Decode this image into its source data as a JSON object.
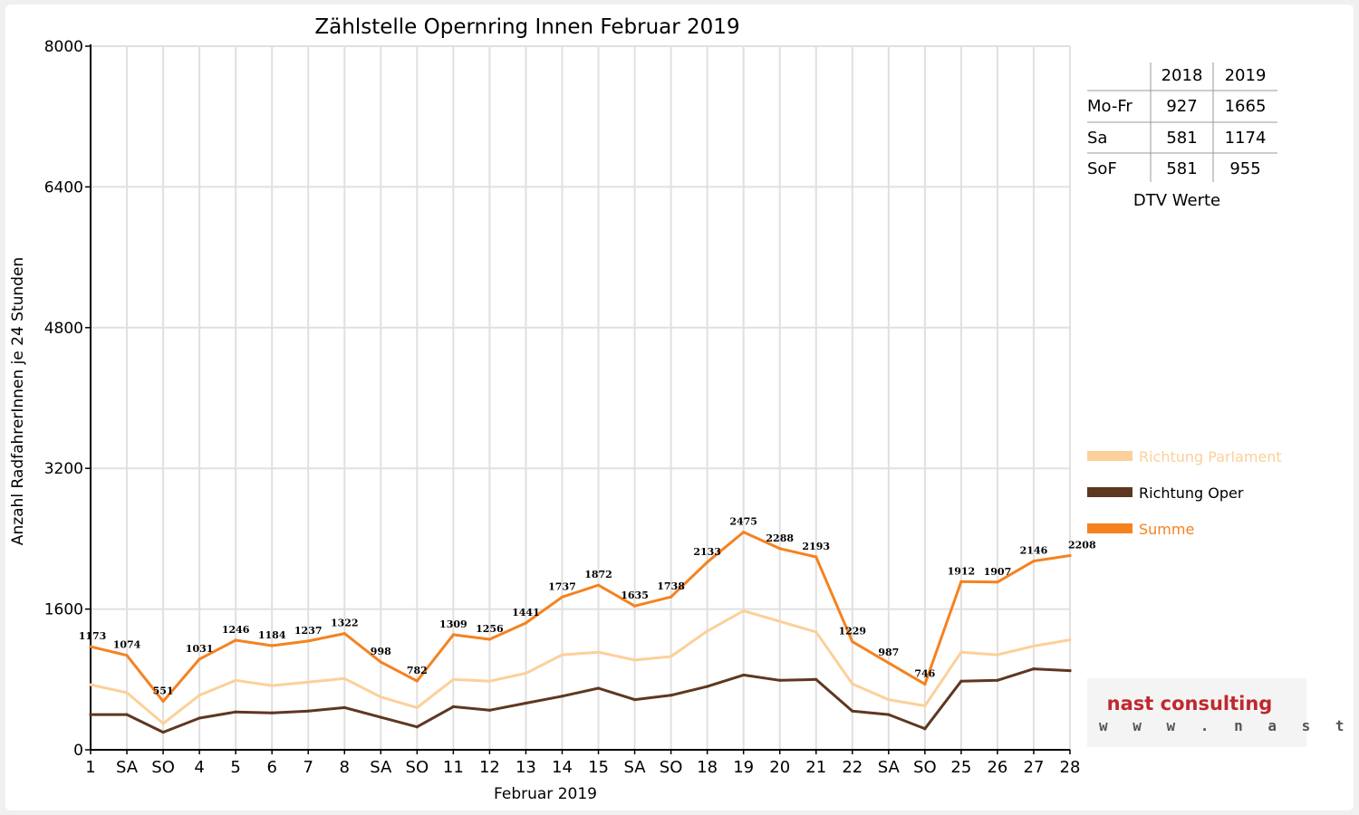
{
  "chart_data": {
    "type": "line",
    "title": "Zählstelle Opernring Innen Februar 2019",
    "xlabel": "Februar 2019",
    "ylabel": "Anzahl RadfahrerInnen je 24 Stunden",
    "ylim": [
      0,
      8000
    ],
    "y_ticks": [
      "0",
      "1600",
      "3200",
      "4800",
      "6400",
      "8000"
    ],
    "grid": true,
    "legend_position": "right",
    "categories": [
      "1",
      "SA",
      "SO",
      "4",
      "5",
      "6",
      "7",
      "8",
      "SA",
      "SO",
      "11",
      "12",
      "13",
      "14",
      "15",
      "SA",
      "SO",
      "18",
      "19",
      "20",
      "21",
      "22",
      "SA",
      "SO",
      "25",
      "26",
      "27",
      "28"
    ],
    "weekend_markers": [
      2,
      9,
      16,
      23
    ],
    "series": [
      {
        "name": "Richtung Parlament",
        "color": "#fcd09a",
        "values": [
          740,
          650,
          300,
          620,
          790,
          730,
          770,
          810,
          600,
          480,
          800,
          780,
          870,
          1080,
          1110,
          1020,
          1060,
          1350,
          1580,
          1460,
          1340,
          750,
          570,
          500,
          1110,
          1080,
          1180,
          1250
        ]
      },
      {
        "name": "Richtung Oper",
        "color": "#5e3720",
        "values": [
          400,
          400,
          200,
          360,
          430,
          420,
          440,
          480,
          370,
          260,
          490,
          450,
          530,
          610,
          700,
          570,
          620,
          720,
          850,
          790,
          800,
          440,
          400,
          240,
          780,
          790,
          920,
          900
        ]
      },
      {
        "name": "Summe",
        "color": "#f5821f",
        "values": [
          1173,
          1074,
          551,
          1031,
          1246,
          1184,
          1237,
          1322,
          998,
          782,
          1309,
          1256,
          1441,
          1737,
          1872,
          1635,
          1738,
          2133,
          2475,
          2288,
          2193,
          1229,
          987,
          746,
          1912,
          1907,
          2146,
          2208
        ]
      }
    ],
    "data_labels": [
      "1173",
      "1074",
      "551",
      "1031",
      "1246",
      "1184",
      "1237",
      "1322",
      "998",
      "782",
      "1309",
      "1256",
      "1441",
      "1737",
      "1872",
      "1635",
      "1738",
      "2133",
      "2475",
      "2288",
      "2193",
      "1229",
      "987",
      "746",
      "1912",
      "1907",
      "2146",
      "2208"
    ]
  },
  "dtv_table": {
    "headers": [
      "",
      "2018",
      "2019"
    ],
    "rows": [
      [
        "Mo-Fr",
        "927",
        "1665"
      ],
      [
        "Sa",
        "581",
        "1174"
      ],
      [
        "SoF",
        "581",
        "955"
      ]
    ],
    "caption": "DTV Werte"
  },
  "logo": {
    "name": "nast consulting",
    "url": "w w w . n a s t . a t"
  },
  "colors": {
    "weekend_label": "#ff0000",
    "grid": "#e0e0e0",
    "logo_red": "#c0282d"
  }
}
